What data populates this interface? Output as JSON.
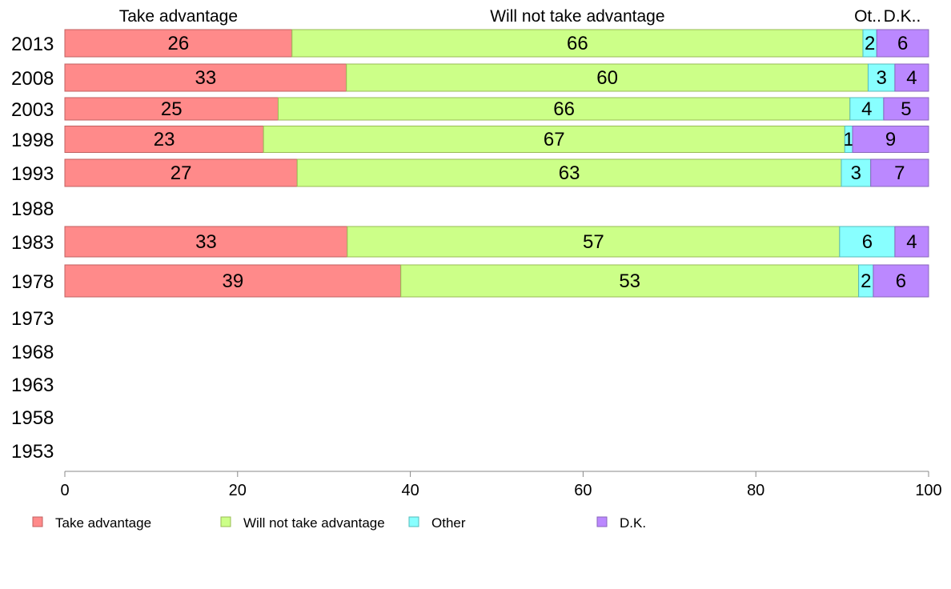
{
  "chart_data": {
    "type": "bar",
    "orientation": "horizontal",
    "stacked": true,
    "title": "",
    "xlabel": "",
    "ylabel": "",
    "xlim": [
      0,
      100
    ],
    "x_ticks": [
      0,
      20,
      40,
      60,
      80,
      100
    ],
    "grid": false,
    "legend_position": "bottom",
    "column_headers": [
      "Take advantage",
      "Will not take advantage",
      "Ot..",
      "D.K.."
    ],
    "categories": [
      "2013",
      "2008",
      "2003",
      "1998",
      "1993",
      "1988",
      "1983",
      "1978",
      "1973",
      "1968",
      "1963",
      "1958",
      "1953"
    ],
    "series": [
      {
        "name": "Take advantage",
        "color": "#ff8a8a",
        "values": [
          26,
          33,
          25,
          23,
          27,
          null,
          33,
          39,
          null,
          null,
          null,
          null,
          null
        ],
        "values_exact": [
          26.3,
          32.6,
          24.7,
          23.0,
          26.9,
          null,
          32.7,
          38.9,
          null,
          null,
          null,
          null,
          null
        ]
      },
      {
        "name": "Will not take advantage",
        "color": "#ccff88",
        "values": [
          66,
          60,
          66,
          67,
          63,
          null,
          57,
          53,
          null,
          null,
          null,
          null,
          null
        ],
        "values_exact": [
          66.1,
          60.4,
          66.2,
          67.3,
          63.0,
          null,
          57.0,
          53.0,
          null,
          null,
          null,
          null,
          null
        ]
      },
      {
        "name": "Other",
        "color": "#88ffff",
        "values": [
          2,
          3,
          4,
          1,
          3,
          null,
          6,
          2,
          null,
          null,
          null,
          null,
          null
        ],
        "values_exact": [
          1.6,
          3.1,
          3.9,
          0.9,
          3.4,
          null,
          6.4,
          1.7,
          null,
          null,
          null,
          null,
          null
        ]
      },
      {
        "name": "D.K.",
        "color": "#bb88ff",
        "values": [
          6,
          4,
          5,
          9,
          7,
          null,
          4,
          6,
          null,
          null,
          null,
          null,
          null
        ],
        "values_exact": [
          6.0,
          3.9,
          5.2,
          8.8,
          6.7,
          null,
          3.9,
          6.4,
          null,
          null,
          null,
          null,
          null
        ]
      }
    ]
  }
}
